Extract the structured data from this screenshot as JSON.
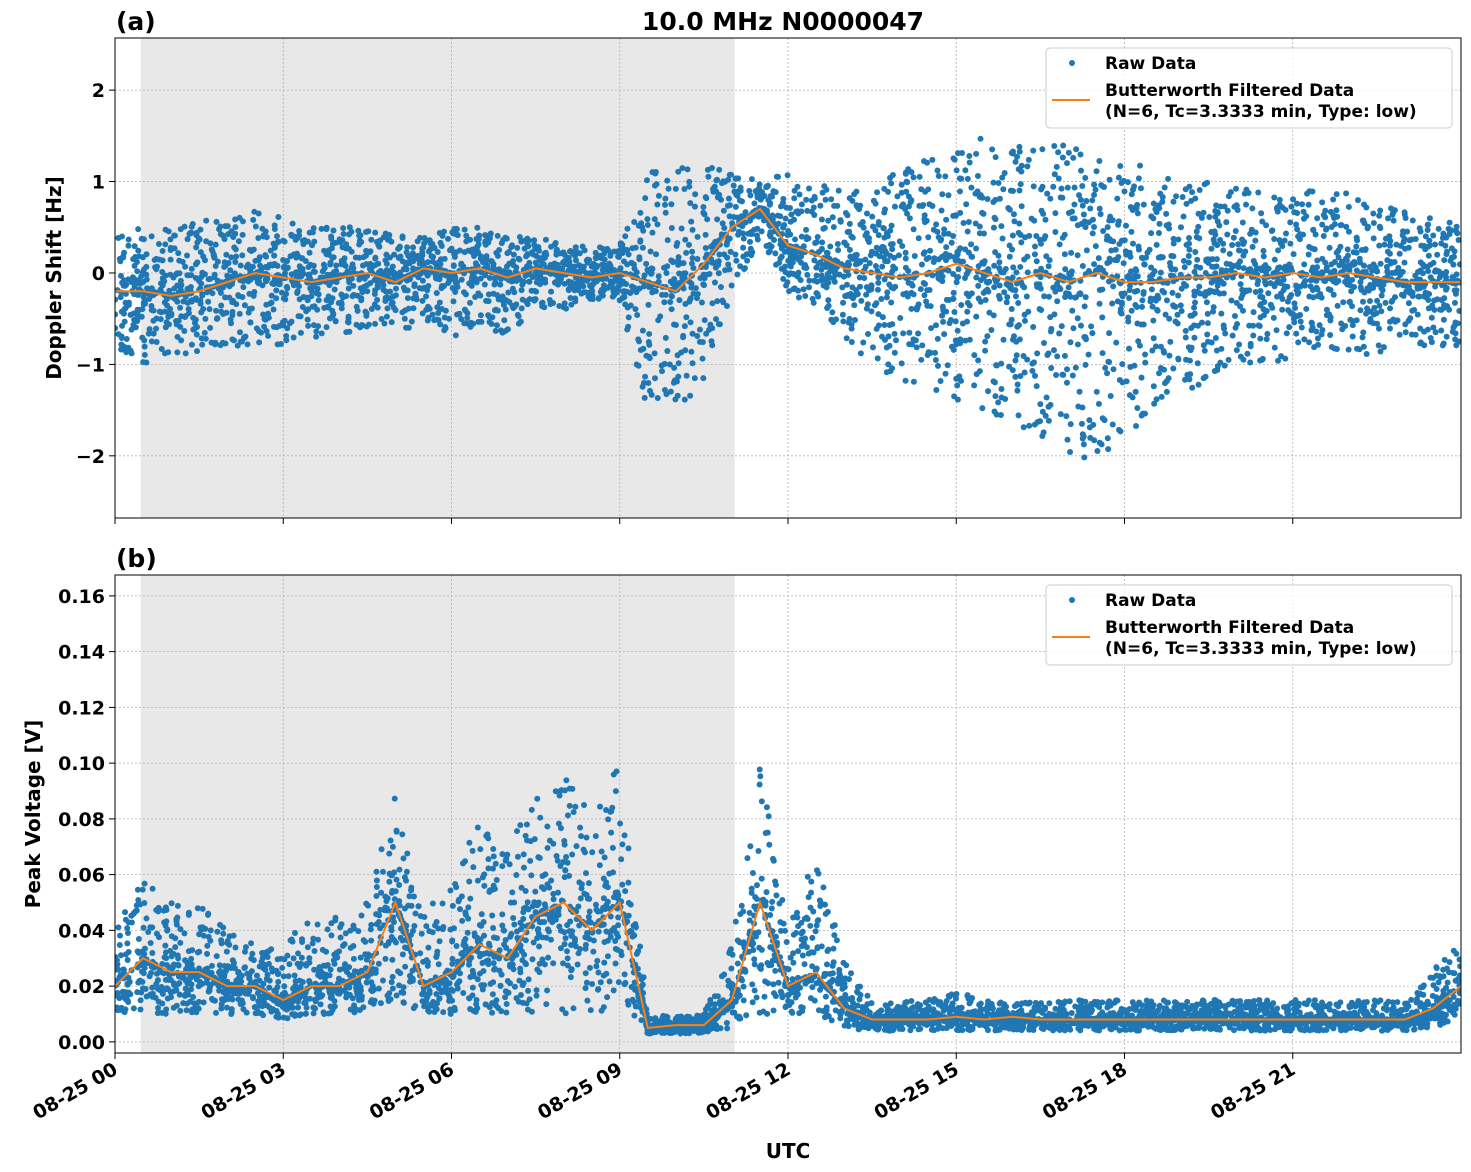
{
  "chart_data": [
    {
      "type": "scatter",
      "panel_label": "(a)",
      "title": "10.0 MHz N0000047",
      "xlabel": "",
      "ylabel": "Doppler Shift [Hz]",
      "x_unit": "hours UTC since 08-25 00",
      "xlim": [
        0,
        24
      ],
      "ylim": [
        -2.68,
        2.57
      ],
      "yticks": [
        -2,
        -1,
        0,
        1,
        2
      ],
      "ytick_labels": [
        "−2",
        "−1",
        "0",
        "1",
        "2"
      ],
      "grid": true,
      "legend_placement": "top-right",
      "shaded_region_hours": [
        0.46,
        11.05
      ],
      "shaded_color": "#e8e8e8",
      "x": [
        0,
        0.5,
        1,
        1.5,
        2,
        2.5,
        3,
        3.5,
        4,
        4.5,
        5,
        5.5,
        6,
        6.5,
        7,
        7.5,
        8,
        8.5,
        9,
        9.5,
        10,
        10.5,
        11,
        11.5,
        12,
        12.5,
        13,
        13.5,
        14,
        14.5,
        15,
        15.5,
        16,
        16.5,
        17,
        17.5,
        18,
        18.5,
        19,
        19.5,
        20,
        20.5,
        21,
        21.5,
        22,
        22.5,
        23,
        23.5,
        24
      ],
      "series": [
        {
          "name": "Raw Data",
          "color": "#1f77b4",
          "kind": "scatter-envelope",
          "min": [
            -0.9,
            -1.0,
            -0.9,
            -0.9,
            -0.8,
            -0.8,
            -0.8,
            -0.7,
            -0.7,
            -0.6,
            -0.7,
            -0.5,
            -0.7,
            -0.6,
            -0.7,
            -0.4,
            -0.4,
            -0.3,
            -0.3,
            -1.5,
            -1.5,
            -1.2,
            -0.3,
            0.4,
            -0.2,
            -0.4,
            -0.7,
            -1.0,
            -1.2,
            -1.3,
            -1.4,
            -1.5,
            -1.7,
            -1.9,
            -2.0,
            -2.1,
            -1.8,
            -1.5,
            -1.3,
            -1.2,
            -1.0,
            -1.0,
            -1.0,
            -1.0,
            -0.9,
            -0.9,
            -0.8,
            -0.8,
            -0.8
          ],
          "max": [
            0.4,
            0.5,
            0.5,
            0.6,
            0.6,
            0.7,
            0.6,
            0.5,
            0.5,
            0.5,
            0.4,
            0.4,
            0.5,
            0.5,
            0.4,
            0.4,
            0.3,
            0.3,
            0.3,
            1.1,
            1.2,
            1.2,
            1.1,
            1.0,
            1.1,
            1.0,
            0.9,
            1.0,
            1.1,
            1.3,
            1.3,
            1.5,
            1.4,
            1.4,
            1.4,
            1.5,
            1.3,
            1.1,
            1.0,
            1.0,
            1.0,
            0.9,
            0.9,
            0.9,
            0.9,
            0.8,
            0.7,
            0.6,
            0.6
          ]
        },
        {
          "name": "Butterworth Filtered Data\n(N=6, Tc=3.3333 min, Type: low)",
          "color": "#ff7f0e",
          "kind": "line",
          "values": [
            -0.2,
            -0.2,
            -0.25,
            -0.2,
            -0.1,
            0,
            -0.05,
            -0.1,
            -0.05,
            0,
            -0.1,
            0.05,
            0,
            0.05,
            -0.05,
            0.05,
            0,
            -0.05,
            0,
            -0.1,
            -0.2,
            0.1,
            0.5,
            0.7,
            0.3,
            0.2,
            0.05,
            0,
            -0.05,
            0,
            0.1,
            0,
            -0.1,
            0,
            -0.1,
            0,
            -0.1,
            -0.1,
            -0.05,
            -0.05,
            0,
            -0.05,
            0,
            -0.05,
            0,
            -0.05,
            -0.1,
            -0.1,
            -0.1
          ]
        }
      ]
    },
    {
      "type": "scatter",
      "panel_label": "(b)",
      "xlabel": "UTC",
      "ylabel": "Peak Voltage [V]",
      "xlim": [
        0,
        24
      ],
      "xticks": [
        0,
        3,
        6,
        9,
        12,
        15,
        18,
        21
      ],
      "xtick_labels": [
        "08-25 00",
        "08-25 03",
        "08-25 06",
        "08-25 09",
        "08-25 12",
        "08-25 15",
        "08-25 18",
        "08-25 21"
      ],
      "ylim": [
        -0.004,
        0.1675
      ],
      "yticks": [
        0,
        0.02,
        0.04,
        0.06,
        0.08,
        0.1,
        0.12,
        0.14,
        0.16
      ],
      "ytick_labels": [
        "0.00",
        "0.02",
        "0.04",
        "0.06",
        "0.08",
        "0.10",
        "0.12",
        "0.14",
        "0.16"
      ],
      "grid": true,
      "legend_placement": "top-right",
      "shaded_region_hours": [
        0.46,
        11.05
      ],
      "x": [
        0,
        0.5,
        1,
        1.5,
        2,
        2.5,
        3,
        3.5,
        4,
        4.5,
        5,
        5.5,
        6,
        6.5,
        7,
        7.5,
        8,
        8.5,
        9,
        9.5,
        10,
        10.5,
        11,
        11.5,
        12,
        12.5,
        13,
        13.5,
        14,
        14.5,
        15,
        15.5,
        16,
        16.5,
        17,
        17.5,
        18,
        18.5,
        19,
        19.5,
        20,
        20.5,
        21,
        21.5,
        22,
        22.5,
        23,
        23.5,
        24
      ],
      "series": [
        {
          "name": "Raw Data",
          "color": "#1f77b4",
          "kind": "scatter-envelope",
          "min": [
            0.01,
            0.01,
            0.01,
            0.01,
            0.01,
            0.01,
            0.008,
            0.01,
            0.01,
            0.01,
            0.015,
            0.01,
            0.01,
            0.01,
            0.01,
            0.01,
            0.01,
            0.01,
            0.01,
            0.003,
            0.003,
            0.003,
            0.005,
            0.01,
            0.01,
            0.01,
            0.005,
            0.004,
            0.004,
            0.004,
            0.004,
            0.004,
            0.004,
            0.004,
            0.004,
            0.004,
            0.004,
            0.004,
            0.004,
            0.004,
            0.004,
            0.004,
            0.004,
            0.004,
            0.004,
            0.004,
            0.004,
            0.005,
            0.008
          ],
          "max": [
            0.04,
            0.06,
            0.05,
            0.05,
            0.04,
            0.035,
            0.035,
            0.045,
            0.045,
            0.05,
            0.09,
            0.045,
            0.06,
            0.08,
            0.07,
            0.09,
            0.095,
            0.09,
            0.1,
            0.01,
            0.009,
            0.01,
            0.035,
            0.1,
            0.04,
            0.07,
            0.03,
            0.015,
            0.015,
            0.015,
            0.018,
            0.015,
            0.015,
            0.015,
            0.015,
            0.015,
            0.015,
            0.015,
            0.015,
            0.015,
            0.015,
            0.015,
            0.015,
            0.015,
            0.015,
            0.015,
            0.015,
            0.025,
            0.04
          ]
        },
        {
          "name": "Butterworth Filtered Data\n(N=6, Tc=3.3333 min, Type: low)",
          "color": "#ff7f0e",
          "kind": "line",
          "values": [
            0.02,
            0.03,
            0.025,
            0.025,
            0.02,
            0.02,
            0.015,
            0.02,
            0.02,
            0.025,
            0.05,
            0.02,
            0.025,
            0.035,
            0.03,
            0.045,
            0.05,
            0.04,
            0.05,
            0.005,
            0.006,
            0.006,
            0.015,
            0.05,
            0.02,
            0.025,
            0.012,
            0.008,
            0.008,
            0.008,
            0.009,
            0.008,
            0.009,
            0.008,
            0.008,
            0.008,
            0.008,
            0.008,
            0.008,
            0.008,
            0.008,
            0.008,
            0.008,
            0.008,
            0.008,
            0.008,
            0.008,
            0.012,
            0.02
          ]
        }
      ]
    }
  ],
  "legend": {
    "raw": "Raw Data",
    "filt1": "Butterworth Filtered Data",
    "filt2": "(N=6, Tc=3.3333 min, Type: low)"
  }
}
